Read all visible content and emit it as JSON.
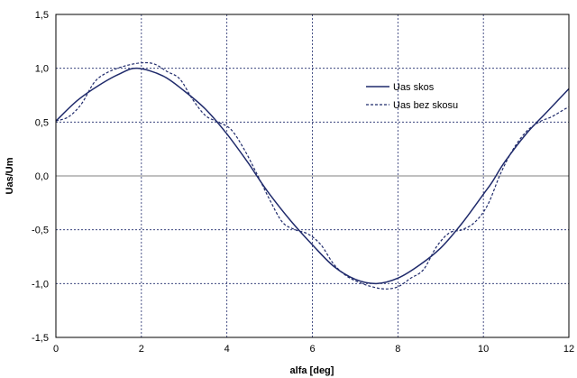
{
  "chart_data": {
    "type": "line",
    "title": "",
    "xlabel": "alfa [deg]",
    "ylabel": "Uas/Um",
    "xlim": [
      0,
      12
    ],
    "ylim": [
      -1.5,
      1.5
    ],
    "x_ticks": [
      0,
      2,
      4,
      6,
      8,
      10,
      12
    ],
    "y_ticks": [
      -1.5,
      -1.0,
      -0.5,
      0.0,
      0.5,
      1.0,
      1.5
    ],
    "x_tick_labels": [
      "0",
      "2",
      "4",
      "6",
      "8",
      "10",
      "12"
    ],
    "y_tick_labels": [
      "-1,5",
      "-1,0",
      "-0,5",
      "0,0",
      "0,5",
      "1,0",
      "1,5"
    ],
    "grid": true,
    "legend_position": "upper-right",
    "colors": {
      "series": "#1f2a6b",
      "grid": "#1f2a6b",
      "zero_line": "#808080",
      "frame": "#000000"
    },
    "series": [
      {
        "name": "Uas skos",
        "style": "solid",
        "x": [
          0,
          0.5,
          1,
          1.5,
          1.9,
          2.5,
          3,
          3.5,
          4,
          4.5,
          4.7,
          5,
          5.5,
          6,
          6.5,
          7,
          7.5,
          8,
          8.5,
          9,
          9.5,
          10,
          10.2,
          10.5,
          11,
          11.5,
          12
        ],
        "y": [
          0.51,
          0.7,
          0.84,
          0.95,
          1.0,
          0.93,
          0.79,
          0.62,
          0.39,
          0.12,
          0.0,
          -0.17,
          -0.42,
          -0.64,
          -0.84,
          -0.96,
          -1.0,
          -0.95,
          -0.83,
          -0.67,
          -0.44,
          -0.17,
          -0.06,
          0.13,
          0.39,
          0.6,
          0.81
        ]
      },
      {
        "name": "Uas bez skosu",
        "style": "dashed",
        "x": [
          0,
          0.3,
          0.6,
          0.9,
          1.2,
          1.6,
          2.0,
          2.3,
          2.6,
          2.9,
          3.2,
          3.5,
          3.8,
          4.1,
          4.4,
          4.7,
          5.0,
          5.3,
          5.6,
          5.9,
          6.2,
          6.5,
          6.8,
          7.1,
          7.4,
          7.7,
          8.0,
          8.3,
          8.6,
          8.9,
          9.2,
          9.5,
          9.8,
          10.1,
          10.4,
          10.7,
          11.0,
          11.3,
          11.6,
          11.9,
          12.0
        ],
        "y": [
          0.51,
          0.55,
          0.67,
          0.87,
          0.96,
          1.02,
          1.05,
          1.04,
          0.97,
          0.9,
          0.71,
          0.56,
          0.5,
          0.43,
          0.25,
          0.02,
          -0.22,
          -0.43,
          -0.5,
          -0.54,
          -0.64,
          -0.82,
          -0.93,
          -0.99,
          -1.03,
          -1.05,
          -1.03,
          -0.95,
          -0.87,
          -0.66,
          -0.53,
          -0.5,
          -0.43,
          -0.27,
          0.02,
          0.25,
          0.41,
          0.5,
          0.55,
          0.62,
          0.64
        ]
      }
    ]
  }
}
